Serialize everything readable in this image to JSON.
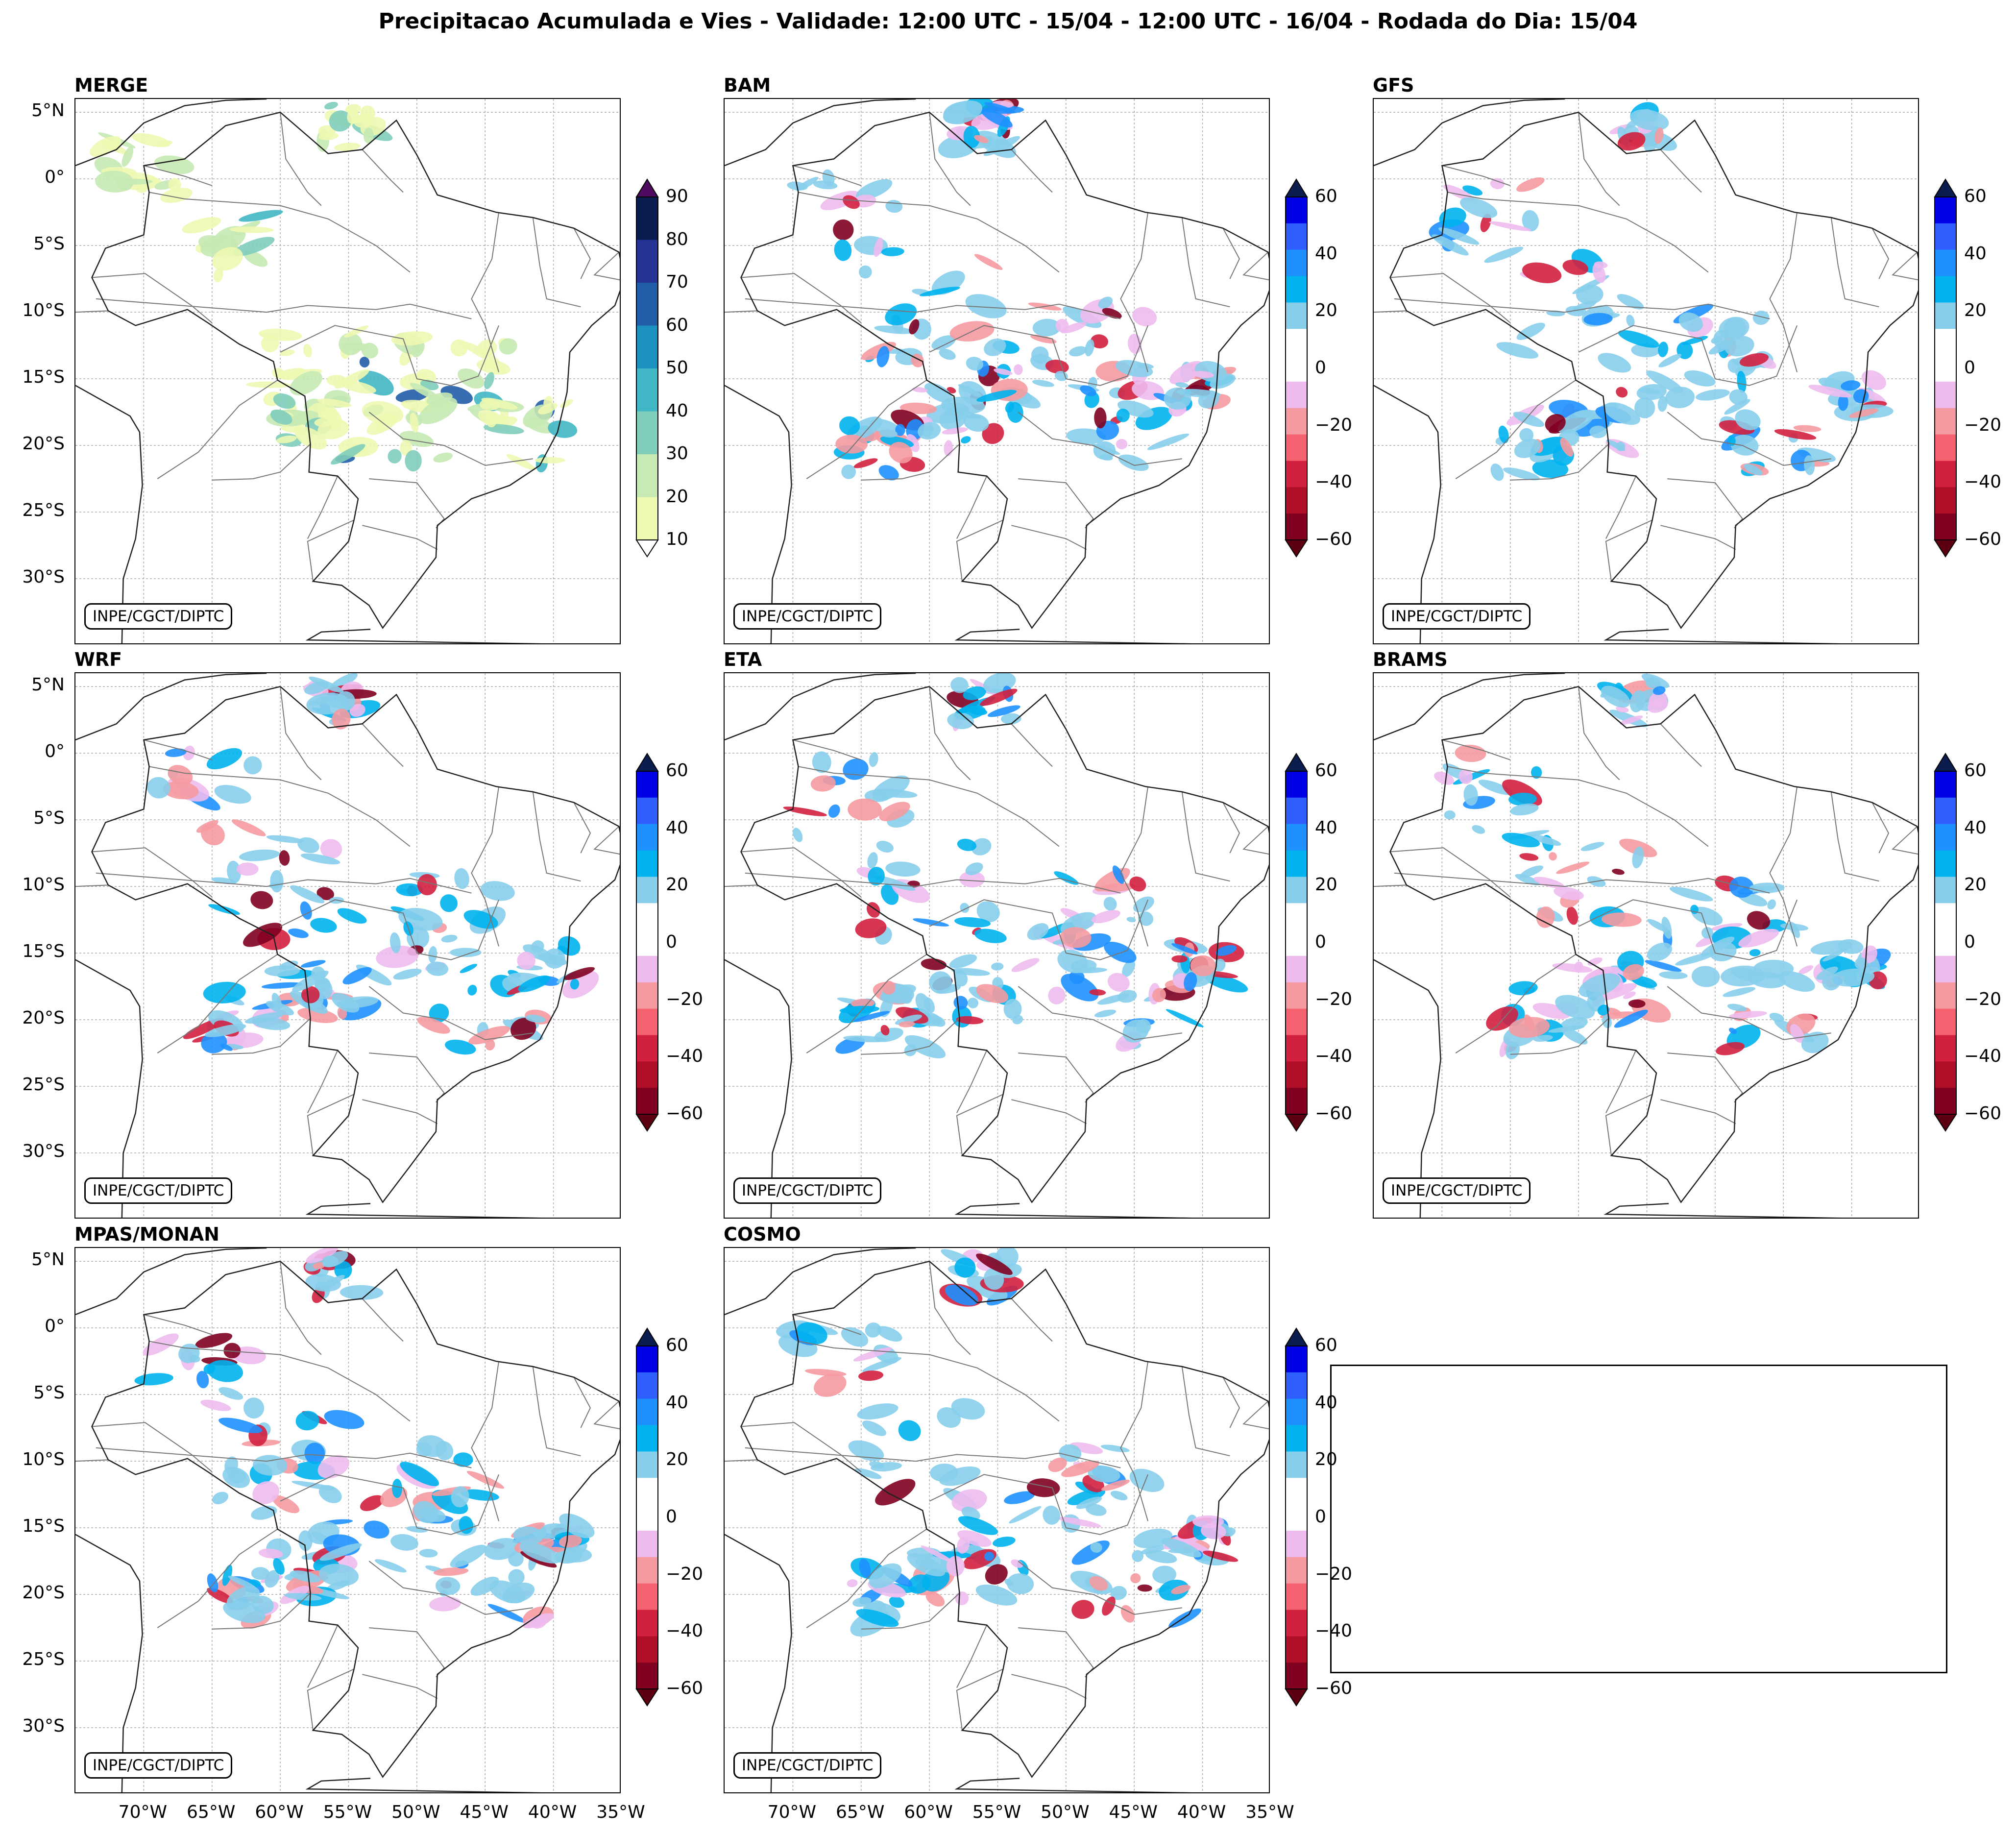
{
  "title": "Precipitacao Acumulada e Vies - Validade: 12:00 UTC - 15/04 - 12:00 UTC - 16/04 - Rodada do Dia: 15/04",
  "credit": "INPE/CGCT/DIPTC",
  "lat_labels": [
    "5°N",
    "0°",
    "5°S",
    "10°S",
    "15°S",
    "20°S",
    "25°S",
    "30°S"
  ],
  "lon_labels": [
    "70°W",
    "65°W",
    "60°W",
    "55°W",
    "50°W",
    "45°W",
    "40°W",
    "35°W"
  ],
  "panels": [
    {
      "name": "MERGE",
      "kind": "precip"
    },
    {
      "name": "BAM",
      "kind": "bias"
    },
    {
      "name": "GFS",
      "kind": "bias"
    },
    {
      "name": "WRF",
      "kind": "bias"
    },
    {
      "name": "ETA",
      "kind": "bias"
    },
    {
      "name": "BRAMS",
      "kind": "bias"
    },
    {
      "name": "MPAS/MONAN",
      "kind": "bias"
    },
    {
      "name": "COSMO",
      "kind": "bias"
    }
  ],
  "precip_scale": {
    "ticks": [
      "90",
      "80",
      "70",
      "60",
      "50",
      "40",
      "30",
      "20",
      "10"
    ],
    "colors": [
      "#0b1d4f",
      "#253494",
      "#225ea8",
      "#1d91c0",
      "#41b6c4",
      "#7fcdbb",
      "#c7e9b4",
      "#edf8b1"
    ],
    "over_color": "#4d0a5e",
    "under_color": "#ffffff"
  },
  "bias_scale": {
    "ticks": [
      "60",
      "40",
      "20",
      "0",
      "−20",
      "−40",
      "−60"
    ],
    "colors": [
      "#0000e6",
      "#2f60ff",
      "#1e90ff",
      "#00b2ee",
      "#87ceeb",
      "#ffffff",
      "#ffffff",
      "#eebbee",
      "#f59aa0",
      "#f4636f",
      "#d2203f",
      "#b00f2a",
      "#800020"
    ],
    "over_color": "#0b1d4f",
    "under_color": "#5c0011"
  }
}
